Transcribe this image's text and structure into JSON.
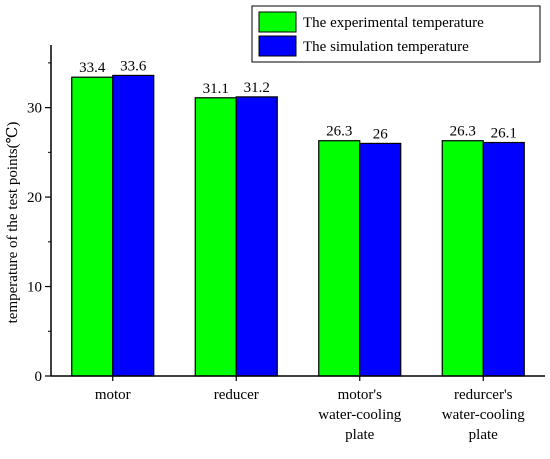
{
  "chart_data": {
    "type": "bar",
    "title": "",
    "xlabel": "",
    "ylabel": "temperature of the test points(℃)",
    "categories": [
      [
        "motor"
      ],
      [
        "reducer"
      ],
      [
        "motor's",
        "water-cooling",
        "plate"
      ],
      [
        "redurcer's",
        "water-cooling",
        "plate"
      ]
    ],
    "series": [
      {
        "name": "The experimental temperature",
        "color": "#00ff00",
        "values": [
          33.4,
          31.1,
          26.3,
          26.3
        ],
        "labels": [
          "33.4",
          "31.1",
          "26.3",
          "26.3"
        ]
      },
      {
        "name": "The simulation temperature",
        "color": "#0000ff",
        "values": [
          33.6,
          31.2,
          26,
          26.1
        ],
        "labels": [
          "33.6",
          "31.2",
          "26",
          "26.1"
        ]
      }
    ],
    "ylim": [
      0,
      37
    ],
    "yticks": [
      0,
      10,
      20,
      30
    ],
    "grid": false,
    "legend_position": "top-right"
  }
}
